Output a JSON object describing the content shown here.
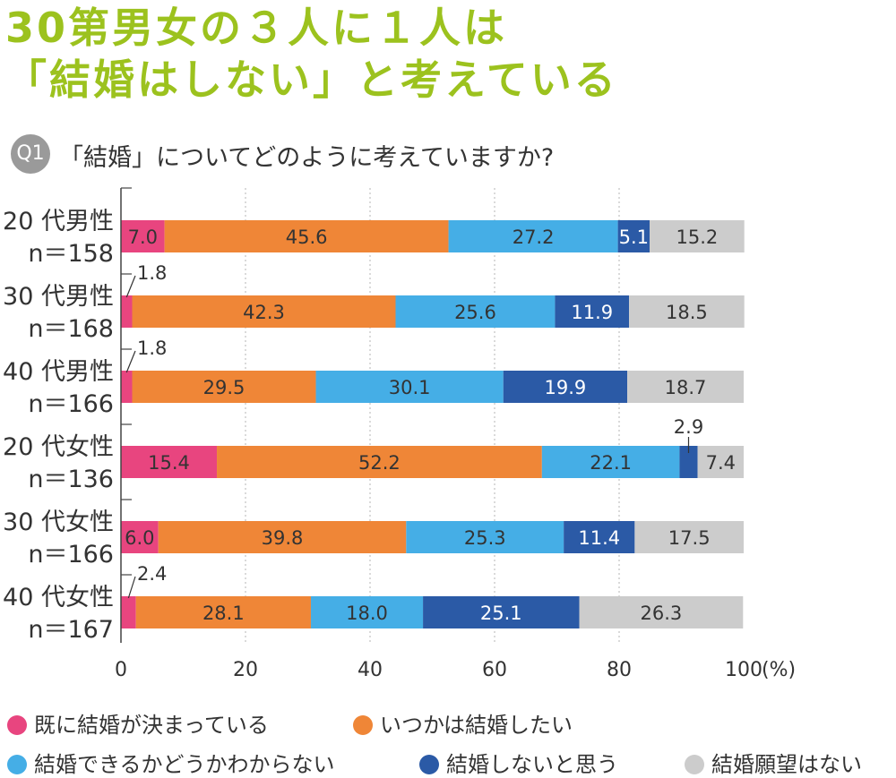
{
  "header": {
    "line1": "30第男女の３人に１人は",
    "line2": "「結婚はしない」と考えている"
  },
  "question": {
    "badge": "Q1",
    "text": "「結婚」についてどのように考えていますか?"
  },
  "chart_data": {
    "type": "bar",
    "orientation": "horizontal",
    "stacked": true,
    "title": "「結婚」についてどのように考えていますか?",
    "categories": [
      "20 代男性",
      "30 代男性",
      "40 代男性",
      "20 代女性",
      "30 代女性",
      "40 代女性"
    ],
    "sample_sizes": [
      "n＝158",
      "n＝168",
      "n＝166",
      "n＝136",
      "n＝166",
      "n＝167"
    ],
    "series": [
      {
        "name": "既に結婚が決まっている",
        "color": "#e8457f",
        "values": [
          7.0,
          1.8,
          1.8,
          15.4,
          6.0,
          2.4
        ]
      },
      {
        "name": "いつかは結婚したい",
        "color": "#ef8637",
        "values": [
          45.6,
          42.3,
          29.5,
          52.2,
          39.8,
          28.1
        ]
      },
      {
        "name": "結婚できるかどうかわからない",
        "color": "#45aee6",
        "values": [
          27.2,
          25.6,
          30.1,
          22.1,
          25.3,
          18.0
        ]
      },
      {
        "name": "結婚しないと思う",
        "color": "#2b5aa6",
        "values": [
          5.1,
          11.9,
          19.9,
          2.9,
          11.4,
          25.1
        ]
      },
      {
        "name": "結婚願望はない",
        "color": "#cccccc",
        "values": [
          15.2,
          18.5,
          18.7,
          7.4,
          17.5,
          26.3
        ]
      }
    ],
    "value_labels": [
      [
        "7.0",
        "45.6",
        "27.2",
        "5.1",
        "15.2"
      ],
      [
        "1.8",
        "42.3",
        "25.6",
        "11.9",
        "18.5"
      ],
      [
        "1.8",
        "29.5",
        "30.1",
        "19.9",
        "18.7"
      ],
      [
        "15.4",
        "52.2",
        "22.1",
        "2.9",
        "7.4"
      ],
      [
        "6.0",
        "39.8",
        "25.3",
        "11.4",
        "17.5"
      ],
      [
        "2.4",
        "28.1",
        "18.0",
        "25.1",
        "26.3"
      ]
    ],
    "x_ticks": [
      "0",
      "20",
      "40",
      "60",
      "80",
      "100"
    ],
    "x_unit": "(%)",
    "xlim": [
      0,
      100
    ]
  },
  "legend": {
    "items": [
      {
        "label": "既に結婚が決まっている",
        "color": "#e8457f"
      },
      {
        "label": "いつかは結婚したい",
        "color": "#ef8637"
      },
      {
        "label": "結婚できるかどうかわからない",
        "color": "#45aee6"
      },
      {
        "label": "結婚しないと思う",
        "color": "#2b5aa6"
      },
      {
        "label": "結婚願望はない",
        "color": "#cccccc"
      }
    ]
  }
}
